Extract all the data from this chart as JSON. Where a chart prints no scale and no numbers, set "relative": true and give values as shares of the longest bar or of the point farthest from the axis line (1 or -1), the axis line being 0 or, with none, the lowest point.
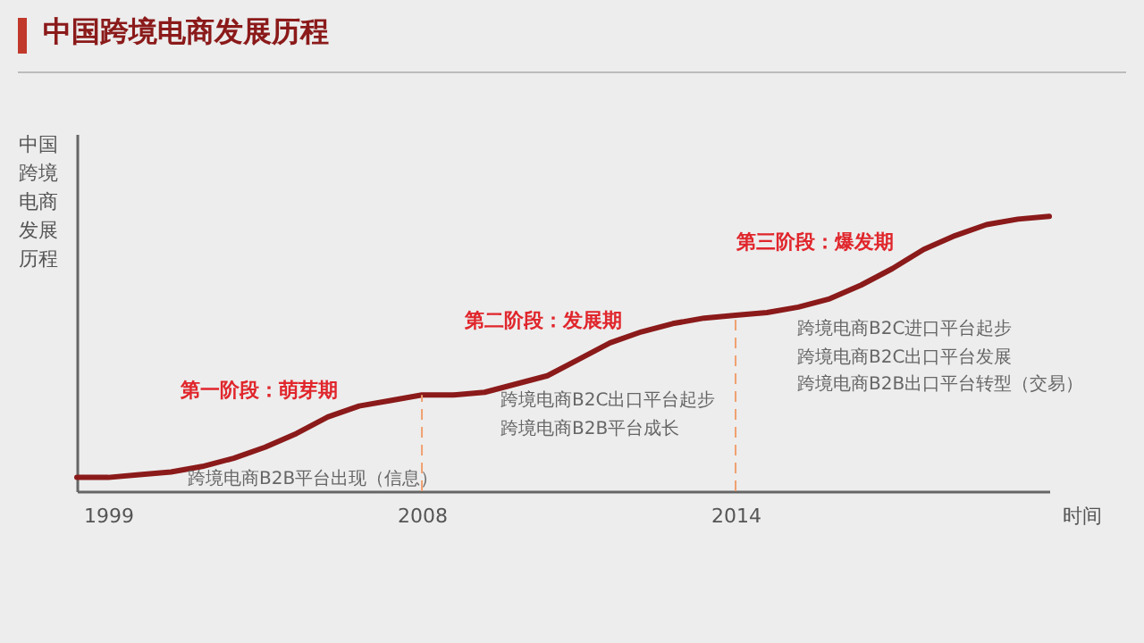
{
  "chart_data": {
    "type": "line",
    "title": "中国跨境电商发展历程",
    "ylabel": "中国跨境电商发展历程",
    "xlabel": "时间",
    "relative": true,
    "grid": false,
    "legend": false,
    "marker": "none",
    "line_style": "solid",
    "categories": [
      null,
      "1999",
      null,
      null,
      null,
      null,
      null,
      null,
      null,
      null,
      null,
      "2008",
      null,
      null,
      null,
      null,
      null,
      null,
      null,
      null,
      null,
      "2014",
      null,
      null,
      null,
      null,
      null,
      null,
      null,
      null,
      null,
      null
    ],
    "series": [
      {
        "color": "#8b1a1a",
        "values": [
          0.05,
          0.05,
          0.06,
          0.07,
          0.09,
          0.12,
          0.16,
          0.21,
          0.27,
          0.31,
          0.33,
          0.35,
          0.35,
          0.36,
          0.39,
          0.42,
          0.48,
          0.54,
          0.58,
          0.61,
          0.63,
          0.64,
          0.65,
          0.67,
          0.7,
          0.75,
          0.81,
          0.88,
          0.93,
          0.97,
          0.99,
          1.0
        ]
      }
    ],
    "ref_lines": [
      {
        "axis": "x",
        "value": "2008",
        "color": "#f0a070",
        "line_style": "dashed"
      },
      {
        "axis": "x",
        "value": "2014",
        "color": "#f0a070",
        "line_style": "dashed"
      }
    ],
    "annotations": [
      "第一阶段：萌芽期",
      "跨境电商B2B平台出现（信息）",
      "第二阶段：发展期",
      "跨境电商B2C出口平台起步",
      "跨境电商B2B平台成长",
      "第三阶段：爆发期",
      "跨境电商B2C进口平台起步",
      "跨境电商B2C出口平台发展",
      "跨境电商B2B出口平台转型（交易）"
    ]
  }
}
